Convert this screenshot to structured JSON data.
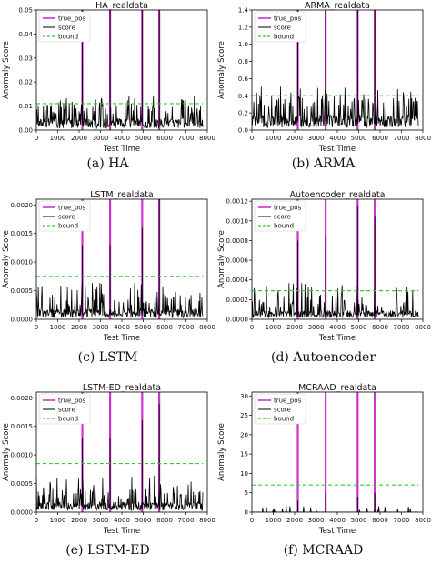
{
  "chart_data": [
    {
      "type": "line",
      "title": "HA_realdata",
      "caption": "(a)  HA",
      "xlabel": "Test Time",
      "ylabel": "Anomaly Score",
      "xlim": [
        0,
        8000
      ],
      "ylim": [
        0,
        0.05
      ],
      "xticks": [
        0,
        1000,
        2000,
        3000,
        4000,
        5000,
        6000,
        7000,
        8000
      ],
      "yticks": [
        0.0,
        0.01,
        0.02,
        0.03,
        0.04,
        0.05
      ],
      "ytick_labels": [
        "0.00",
        "0.01",
        "0.02",
        "0.03",
        "0.04",
        "0.05"
      ],
      "legend": [
        "true_pos",
        "score",
        "bound"
      ],
      "legend_position": "top-left",
      "bound": 0.011,
      "true_pos": [
        2150,
        3450,
        4950,
        5750
      ],
      "peaks": [
        {
          "x": 2150,
          "y": 0.054
        },
        {
          "x": 3450,
          "y": 0.054
        },
        {
          "x": 4950,
          "y": 0.054
        },
        {
          "x": 5750,
          "y": 0.054
        }
      ],
      "noise_level": 0.0055,
      "noise_spike": 0.011,
      "x_end": 7800,
      "colors": {
        "true_pos": "#cc33cc",
        "score": "#000000",
        "bound": "#33cc33"
      }
    },
    {
      "type": "line",
      "title": "ARMA_realdata",
      "caption": "(b)  ARMA",
      "xlabel": "Test Time",
      "ylabel": "Anomaly Score",
      "xlim": [
        0,
        8000
      ],
      "ylim": [
        0,
        1.4
      ],
      "xticks": [
        0,
        1000,
        2000,
        3000,
        4000,
        5000,
        6000,
        7000,
        8000
      ],
      "yticks": [
        0.0,
        0.2,
        0.4,
        0.6,
        0.8,
        1.0,
        1.2,
        1.4
      ],
      "ytick_labels": [
        "0.0",
        "0.2",
        "0.4",
        "0.6",
        "0.8",
        "1.0",
        "1.2",
        "1.4"
      ],
      "legend": [
        "true_pos",
        "score",
        "bound"
      ],
      "legend_position": "top-left",
      "bound": 0.4,
      "true_pos": [
        2150,
        3450,
        4950,
        5750
      ],
      "peaks": [
        {
          "x": 2150,
          "y": 1.45
        },
        {
          "x": 3450,
          "y": 1.45
        },
        {
          "x": 4950,
          "y": 1.45
        },
        {
          "x": 5750,
          "y": 1.45
        }
      ],
      "noise_level": 0.2,
      "noise_spike": 0.4,
      "x_end": 7800,
      "colors": {
        "true_pos": "#cc33cc",
        "score": "#000000",
        "bound": "#33cc33"
      }
    },
    {
      "type": "line",
      "title": "LSTM_realdata",
      "caption": "(c)  LSTM",
      "xlabel": "Test Time",
      "ylabel": "Anomaly Score",
      "xlim": [
        0,
        8000
      ],
      "ylim": [
        0,
        0.0021
      ],
      "xticks": [
        0,
        1000,
        2000,
        3000,
        4000,
        5000,
        6000,
        7000,
        8000
      ],
      "yticks": [
        0.0,
        0.0005,
        0.001,
        0.0015,
        0.002
      ],
      "ytick_labels": [
        "0.0000",
        "0.0005",
        "0.0010",
        "0.0015",
        "0.0020"
      ],
      "legend": [
        "true_pos",
        "score",
        "bound"
      ],
      "legend_position": "top-left",
      "bound": 0.00075,
      "true_pos": [
        2150,
        3450,
        4950,
        5750
      ],
      "peaks": [
        {
          "x": 2150,
          "y": 0.0013
        },
        {
          "x": 3450,
          "y": 0.0013
        },
        {
          "x": 4950,
          "y": 0.0016
        },
        {
          "x": 5750,
          "y": 0.0022
        }
      ],
      "noise_level": 0.0002,
      "noise_spike": 0.0005,
      "x_end": 7800,
      "colors": {
        "true_pos": "#cc33cc",
        "score": "#000000",
        "bound": "#33cc33"
      }
    },
    {
      "type": "line",
      "title": "Autoencoder_realdata",
      "caption": "(d)  Autoencoder",
      "xlabel": "Test Time",
      "ylabel": "Anomaly Score",
      "xlim": [
        0,
        8000
      ],
      "ylim": [
        0,
        0.00122
      ],
      "xticks": [
        0,
        1000,
        2000,
        3000,
        4000,
        5000,
        6000,
        7000,
        8000
      ],
      "yticks": [
        0.0,
        0.0002,
        0.0004,
        0.0006,
        0.0008,
        0.001,
        0.0012
      ],
      "ytick_labels": [
        "0.0000",
        "0.0002",
        "0.0004",
        "0.0006",
        "0.0008",
        "0.0010",
        "0.0012"
      ],
      "legend": [
        "true_pos",
        "score",
        "bound"
      ],
      "legend_position": "top-left",
      "bound": 0.00029,
      "true_pos": [
        2150,
        3450,
        4950,
        5750
      ],
      "peaks": [
        {
          "x": 2150,
          "y": 0.0008
        },
        {
          "x": 3450,
          "y": 0.00085
        },
        {
          "x": 4950,
          "y": 0.00115
        },
        {
          "x": 5750,
          "y": 0.00105
        }
      ],
      "noise_level": 0.0001,
      "noise_spike": 0.00029,
      "x_end": 7800,
      "colors": {
        "true_pos": "#cc33cc",
        "score": "#000000",
        "bound": "#33cc33"
      }
    },
    {
      "type": "line",
      "title": "LSTM-ED_realdata",
      "caption": "(e)  LSTM-ED",
      "xlabel": "Test Time",
      "ylabel": "Anomaly Score",
      "xlim": [
        0,
        8000
      ],
      "ylim": [
        0,
        0.0021
      ],
      "xticks": [
        0,
        1000,
        2000,
        3000,
        4000,
        5000,
        6000,
        7000,
        8000
      ],
      "yticks": [
        0.0,
        0.0005,
        0.001,
        0.0015,
        0.002
      ],
      "ytick_labels": [
        "0.0000",
        "0.0005",
        "0.0010",
        "0.0015",
        "0.0020"
      ],
      "legend": [
        "true_pos",
        "score",
        "bound"
      ],
      "legend_position": "top-left",
      "bound": 0.00085,
      "true_pos": [
        2150,
        3450,
        4950,
        5750
      ],
      "peaks": [
        {
          "x": 2150,
          "y": 0.0013
        },
        {
          "x": 3450,
          "y": 0.0013
        },
        {
          "x": 4950,
          "y": 0.0016
        },
        {
          "x": 5750,
          "y": 0.0019
        }
      ],
      "noise_level": 0.0002,
      "noise_spike": 0.0005,
      "x_end": 7800,
      "colors": {
        "true_pos": "#cc33cc",
        "score": "#000000",
        "bound": "#33cc33"
      }
    },
    {
      "type": "line",
      "title": "MCRAAD_realdata",
      "caption": "(f)  MCRAAD",
      "xlabel": "Test Time",
      "ylabel": "Anomaly Score",
      "xlim": [
        0,
        8000
      ],
      "ylim": [
        0,
        31
      ],
      "xticks": [
        0,
        1000,
        2000,
        3000,
        4000,
        5000,
        6000,
        7000,
        8000
      ],
      "yticks": [
        0,
        5,
        10,
        15,
        20,
        25,
        30
      ],
      "ytick_labels": [
        "0",
        "5",
        "10",
        "15",
        "20",
        "25",
        "30"
      ],
      "legend": [
        "true_pos",
        "score",
        "bound"
      ],
      "legend_position": "top-left",
      "bound": 7,
      "true_pos": [
        2150,
        3450,
        4950,
        5750
      ],
      "peaks": [
        {
          "x": 2150,
          "y": 3
        },
        {
          "x": 3450,
          "y": 5
        },
        {
          "x": 4950,
          "y": 4
        },
        {
          "x": 5750,
          "y": 5
        }
      ],
      "noise_level": 0,
      "noise_spike": 1.5,
      "x_end": 7800,
      "colors": {
        "true_pos": "#cc33cc",
        "score": "#000000",
        "bound": "#33cc33"
      }
    }
  ]
}
